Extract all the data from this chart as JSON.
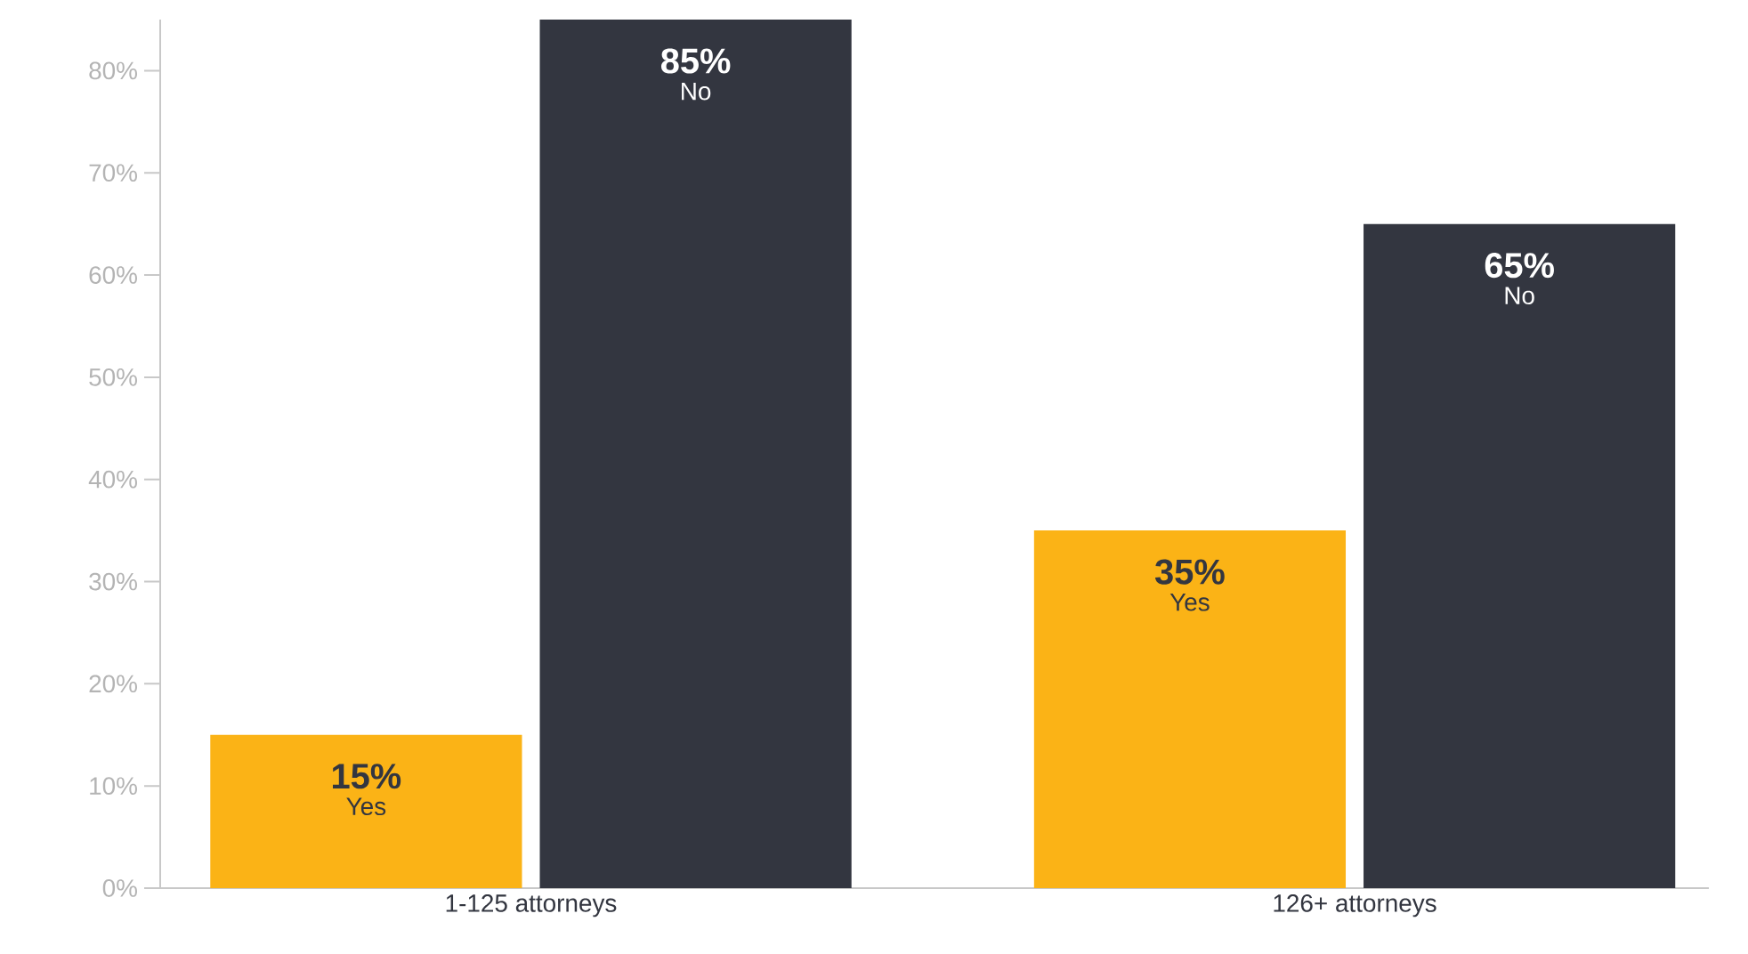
{
  "chart_data": {
    "type": "bar",
    "categories": [
      "1-125 attorneys",
      "126+ attorneys"
    ],
    "series": [
      {
        "name": "Yes",
        "color": "#fbb316",
        "values": [
          15,
          35
        ],
        "value_labels": [
          "15%",
          "35%"
        ]
      },
      {
        "name": "No",
        "color": "#333640",
        "values": [
          85,
          65
        ],
        "value_labels": [
          "85%",
          "65%"
        ]
      }
    ],
    "ylim": [
      0,
      85
    ],
    "yticks": [
      {
        "value": 0,
        "label": "0%"
      },
      {
        "value": 10,
        "label": "10%"
      },
      {
        "value": 20,
        "label": "20%"
      },
      {
        "value": 30,
        "label": "30%"
      },
      {
        "value": 40,
        "label": "40%"
      },
      {
        "value": 50,
        "label": "50%"
      },
      {
        "value": 60,
        "label": "60%"
      },
      {
        "value": 70,
        "label": "70%"
      },
      {
        "value": 80,
        "label": "80%"
      }
    ],
    "grid": false,
    "legend": false
  }
}
